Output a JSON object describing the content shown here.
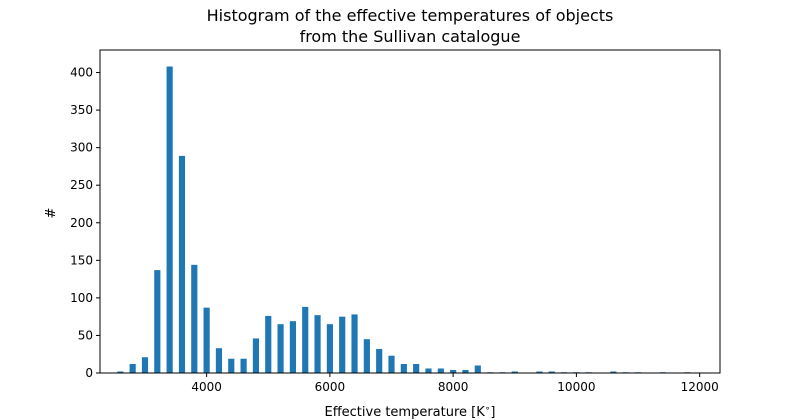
{
  "chart_data": {
    "type": "bar",
    "title_lines": [
      "Histogram of the effective temperatures of objects",
      "from the Sullivan catalogue"
    ],
    "xlabel": "Effective temperature [K$^\\circ$]",
    "xlabel_display": "Effective temperature [K",
    "xlabel_sup": "∘",
    "xlabel_close": "]",
    "ylabel": "#",
    "xlim": [
      2270,
      12330
    ],
    "ylim": [
      0,
      430
    ],
    "x_ticks": [
      4000,
      6000,
      8000,
      10000,
      12000
    ],
    "x_tick_labels": [
      "4000",
      "6000",
      "8000",
      "10000",
      "12000"
    ],
    "y_ticks": [
      0,
      50,
      100,
      150,
      200,
      250,
      300,
      350,
      400
    ],
    "y_tick_labels": [
      "0",
      "50",
      "100",
      "150",
      "200",
      "250",
      "300",
      "350",
      "400"
    ],
    "bar_width": 100,
    "bar_color": "#1f77b4",
    "grid": false,
    "bin_centers": [
      2600,
      2800,
      3000,
      3200,
      3400,
      3600,
      3800,
      4000,
      4200,
      4400,
      4600,
      4800,
      5000,
      5200,
      5400,
      5600,
      5800,
      6000,
      6200,
      6400,
      6600,
      6800,
      7000,
      7200,
      7400,
      7600,
      7800,
      8000,
      8200,
      8400,
      8600,
      8800,
      9000,
      9200,
      9400,
      9600,
      9800,
      10000,
      10200,
      10400,
      10600,
      10800,
      11000,
      11200,
      11400,
      11600,
      11800
    ],
    "values": [
      2,
      12,
      21,
      137,
      408,
      289,
      144,
      87,
      33,
      19,
      19,
      46,
      76,
      65,
      69,
      88,
      77,
      65,
      75,
      78,
      45,
      32,
      23,
      12,
      12,
      6,
      6,
      4,
      4,
      10,
      1,
      1,
      2,
      0,
      2,
      2,
      1,
      1,
      1,
      0,
      2,
      1,
      1,
      0,
      1,
      0,
      1
    ]
  }
}
